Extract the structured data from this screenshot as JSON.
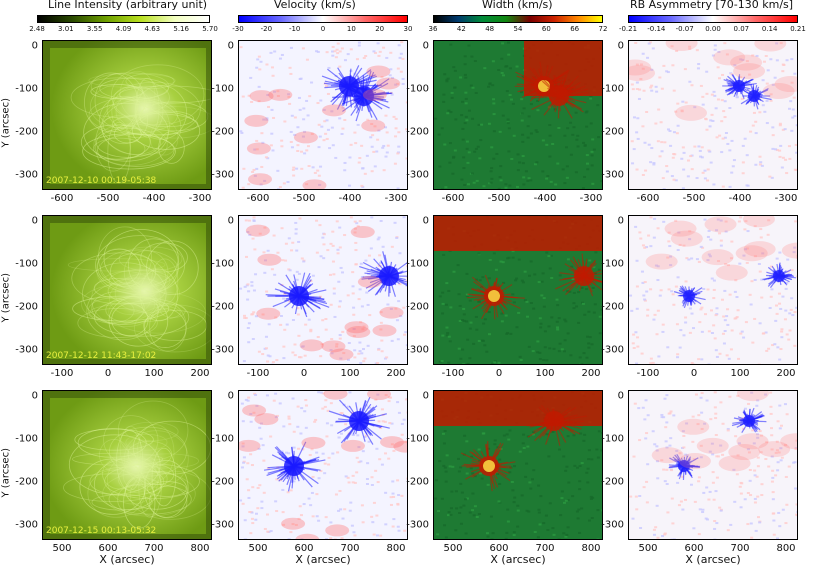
{
  "colorbars": [
    {
      "title": "Line Intensity (arbitrary unit)",
      "ticks": [
        "2.48",
        "3.01",
        "3.55",
        "4.09",
        "4.63",
        "5.16",
        "5.70"
      ],
      "gradient": [
        "#000000",
        "#2a4a00",
        "#6fa000",
        "#b9e020",
        "#f2ffc0",
        "#ffffff"
      ]
    },
    {
      "title": "Velocity (km/s)",
      "ticks": [
        "-30",
        "-20",
        "-10",
        "0",
        "10",
        "20",
        "30"
      ],
      "gradient": [
        "#0000ff",
        "#6a6aff",
        "#ffffff",
        "#ff6a6a",
        "#ff0000"
      ]
    },
    {
      "title": "Width (km/s)",
      "ticks": [
        "36",
        "42",
        "48",
        "54",
        "60",
        "66",
        "72"
      ],
      "gradient": [
        "#000000",
        "#003a6e",
        "#008a3a",
        "#118811",
        "#7a0000",
        "#cc2200",
        "#ff8800",
        "#ffff00"
      ]
    },
    {
      "title": "RB Asymmetry [70-130 km/s]",
      "ticks": [
        "-0.21",
        "-0.14",
        "-0.07",
        "0.00",
        "0.07",
        "0.14",
        "0.21"
      ],
      "gradient": [
        "#0000ff",
        "#6a6aff",
        "#ffffff",
        "#ff6a6a",
        "#ff0000"
      ]
    }
  ],
  "rows": [
    {
      "date": "2007-12-10  00:19-05:38",
      "xticks": [
        "-600",
        "-500",
        "-400",
        "-300"
      ],
      "yticks": [
        "0",
        "-100",
        "-200",
        "-300"
      ]
    },
    {
      "date": "2007-12-12  11:43-17:02",
      "xticks": [
        "-100",
        "0",
        "100",
        "200"
      ],
      "yticks": [
        "0",
        "-100",
        "-200",
        "-300"
      ]
    },
    {
      "date": "2007-12-15  00:13-05:32",
      "xticks": [
        "500",
        "600",
        "700",
        "800"
      ],
      "yticks": [
        "0",
        "-100",
        "-200",
        "-300"
      ]
    }
  ],
  "axis_labels": {
    "y": "Y (arcsec)",
    "x": "X (arcsec)"
  },
  "panel_colors": {
    "intensity": {
      "bg": "#6e9b14",
      "bright": "#e8f7b0",
      "dark": "#2f4a08"
    },
    "velocity": {
      "bg": "#f4f4ff",
      "blue": "#1a1aff",
      "red": "#ff6a6a"
    },
    "width": {
      "bg": "#1e7a33",
      "red": "#c01a00",
      "yellow": "#ffe84a"
    },
    "rb": {
      "bg": "#f7f4fa",
      "blue": "#2020ff",
      "red": "#ff8080"
    }
  }
}
